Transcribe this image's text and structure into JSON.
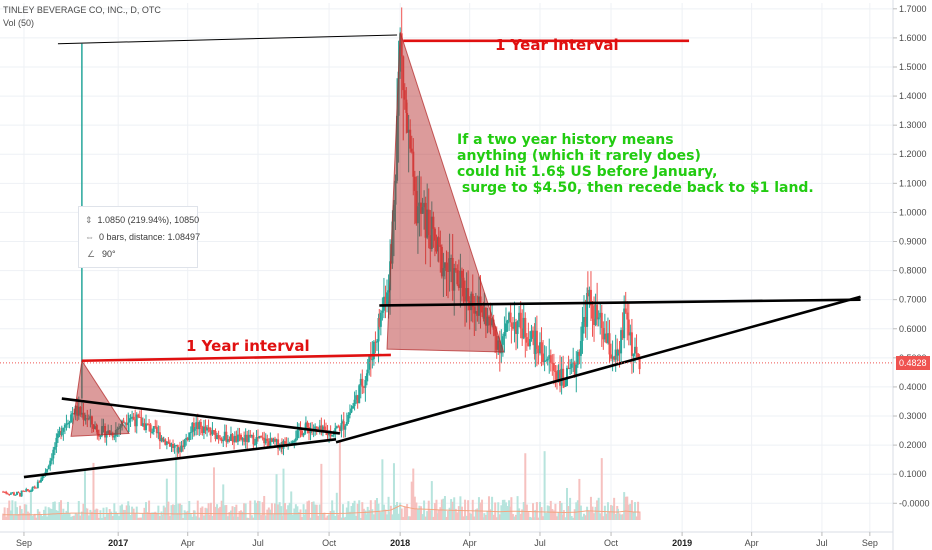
{
  "header": {
    "title": "TINLEY BEVERAGE CO, INC., D, OTC",
    "volume_label": "Vol (50)"
  },
  "measure_tool": {
    "price_change": "1.0850 (219.94%), 10850",
    "bars_distance": "0 bars, distance: 1.08497",
    "angle": "90°"
  },
  "annotations": {
    "year_interval_top": "1 Year interval",
    "year_interval_mid": "1 Year interval",
    "comment_lines": [
      "If a two year history means",
      "anything (which it rarely does)",
      "could hit 1.6$ US before January,",
      " surge to $4.50, then recede back to $1 land."
    ]
  },
  "last_price_label": "0.4828",
  "colors": {
    "up": "#26a69a",
    "down": "#ef5350",
    "triangle_fill": "#b22222",
    "trendline": "#000000",
    "interval_line": "#e01010",
    "comment_text": "#22cc11",
    "volume_ma": "#f4a582"
  },
  "chart_data": {
    "type": "candlestick",
    "title": "TINLEY BEVERAGE CO, INC., D, OTC",
    "y_axis": {
      "ticks": [
        "-0.0000",
        "0.1000",
        "0.2000",
        "0.3000",
        "0.4000",
        "0.5000",
        "0.6000",
        "0.7000",
        "0.8000",
        "0.9000",
        "1.0000",
        "1.1000",
        "1.2000",
        "1.3000",
        "1.4000",
        "1.5000",
        "1.6000",
        "1.7000"
      ],
      "range": [
        -0.03,
        1.72
      ]
    },
    "x_axis": {
      "ticks": [
        "Sep",
        "2017",
        "Apr",
        "Jul",
        "Oct",
        "2018",
        "Apr",
        "Jul",
        "Oct",
        "2019",
        "Apr",
        "Jul",
        "Sep"
      ],
      "bold_ticks": [
        "2017",
        "2018",
        "2019"
      ]
    },
    "last_price": 0.4828,
    "price_path": [
      [
        "2016-08-05",
        0.04
      ],
      [
        "2016-08-25",
        0.03
      ],
      [
        "2016-09-15",
        0.05
      ],
      [
        "2016-10-01",
        0.12
      ],
      [
        "2016-10-20",
        0.26
      ],
      [
        "2016-11-05",
        0.32
      ],
      [
        "2016-11-20",
        0.3
      ],
      [
        "2016-12-05",
        0.25
      ],
      [
        "2016-12-25",
        0.24
      ],
      [
        "2017-01-15",
        0.3
      ],
      [
        "2017-02-10",
        0.26
      ],
      [
        "2017-03-01",
        0.22
      ],
      [
        "2017-03-20",
        0.18
      ],
      [
        "2017-04-10",
        0.27
      ],
      [
        "2017-05-01",
        0.24
      ],
      [
        "2017-06-01",
        0.22
      ],
      [
        "2017-07-01",
        0.22
      ],
      [
        "2017-08-01",
        0.2
      ],
      [
        "2017-09-01",
        0.26
      ],
      [
        "2017-10-01",
        0.24
      ],
      [
        "2017-10-20",
        0.27
      ],
      [
        "2017-11-05",
        0.36
      ],
      [
        "2017-11-20",
        0.46
      ],
      [
        "2017-12-05",
        0.62
      ],
      [
        "2017-12-20",
        0.82
      ],
      [
        "2018-01-01",
        1.58
      ],
      [
        "2018-01-10",
        1.28
      ],
      [
        "2018-01-20",
        1.02
      ],
      [
        "2018-02-05",
        0.96
      ],
      [
        "2018-02-20",
        0.85
      ],
      [
        "2018-03-10",
        0.78
      ],
      [
        "2018-04-01",
        0.71
      ],
      [
        "2018-04-20",
        0.65
      ],
      [
        "2018-05-10",
        0.55
      ],
      [
        "2018-05-25",
        0.63
      ],
      [
        "2018-06-10",
        0.6
      ],
      [
        "2018-06-25",
        0.55
      ],
      [
        "2018-07-15",
        0.48
      ],
      [
        "2018-08-01",
        0.42
      ],
      [
        "2018-08-15",
        0.46
      ],
      [
        "2018-09-01",
        0.7
      ],
      [
        "2018-09-15",
        0.62
      ],
      [
        "2018-10-01",
        0.52
      ],
      [
        "2018-10-10",
        0.49
      ],
      [
        "2018-10-20",
        0.66
      ],
      [
        "2018-10-30",
        0.51
      ],
      [
        "2018-11-08",
        0.48
      ]
    ],
    "spike": {
      "date": "2016-11-15",
      "low": 0.36,
      "high": 1.58
    },
    "drawings": {
      "trendlines": [
        {
          "from": [
            "2016-09-01",
            0.09
          ],
          "to": [
            "2017-10-10",
            0.22
          ]
        },
        {
          "from": [
            "2017-10-10",
            0.21
          ],
          "to": [
            "2019-08-20",
            0.71
          ]
        },
        {
          "from": [
            "2017-12-05",
            0.68
          ],
          "to": [
            "2019-08-20",
            0.7
          ]
        },
        {
          "from": [
            "2016-10-20",
            0.36
          ],
          "to": [
            "2017-10-15",
            0.24
          ]
        },
        {
          "from": [
            "2016-10-15",
            1.58
          ],
          "to": [
            "2017-12-28",
            1.61
          ]
        }
      ],
      "interval_lines": [
        {
          "from": [
            "2016-11-15",
            0.49
          ],
          "to": [
            "2017-12-20",
            0.51
          ]
        },
        {
          "from": [
            "2018-01-05",
            1.59
          ],
          "to": [
            "2019-01-10",
            1.59
          ]
        }
      ],
      "triangles": [
        [
          [
            "2016-11-15",
            0.49
          ],
          [
            "2016-11-01",
            0.23
          ],
          [
            "2017-01-15",
            0.24
          ]
        ],
        [
          [
            "2018-01-01",
            1.62
          ],
          [
            "2017-12-15",
            0.53
          ],
          [
            "2018-05-15",
            0.52
          ]
        ]
      ]
    }
  }
}
